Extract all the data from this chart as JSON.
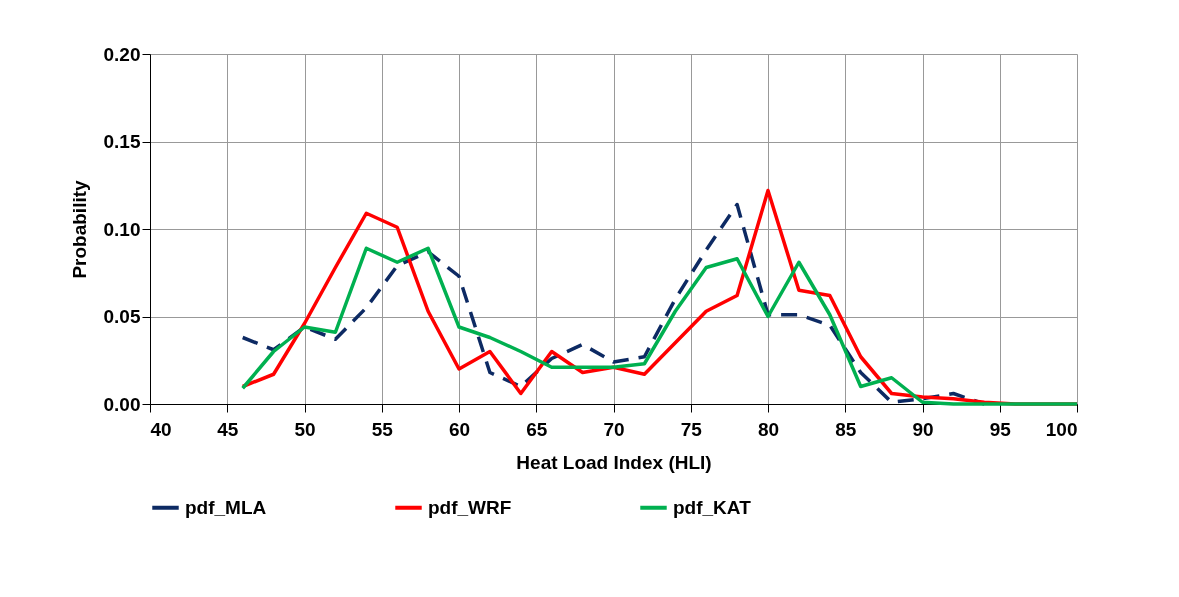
{
  "chart_data": {
    "type": "line",
    "xlabel": "Heat Load Index (HLI)",
    "ylabel": "Probability",
    "x": [
      46,
      48,
      50,
      52,
      54,
      56,
      58,
      60,
      62,
      64,
      66,
      68,
      70,
      72,
      74,
      76,
      78,
      80,
      82,
      84,
      86,
      88,
      90,
      92,
      94,
      96,
      98,
      100
    ],
    "series": [
      {
        "name": "pdf_MLA",
        "color": "#0d2a63",
        "line_style": "dashed",
        "values": [
          0.038,
          0.031,
          0.044,
          0.037,
          0.055,
          0.079,
          0.087,
          0.073,
          0.018,
          0.01,
          0.026,
          0.034,
          0.024,
          0.027,
          0.06,
          0.088,
          0.114,
          0.051,
          0.051,
          0.045,
          0.018,
          0.001,
          0.003,
          0.006,
          0,
          null,
          null,
          null
        ]
      },
      {
        "name": "pdf_WRF",
        "color": "#ff0000",
        "line_style": "solid",
        "values": [
          0.01,
          0.017,
          0.046,
          0.078,
          0.109,
          0.101,
          0.053,
          0.02,
          0.03,
          0.006,
          0.03,
          0.018,
          0.021,
          0.017,
          0.035,
          0.053,
          0.062,
          0.122,
          0.065,
          0.062,
          0.027,
          0.006,
          0.004,
          0.003,
          0.001,
          0,
          0,
          0
        ]
      },
      {
        "name": "pdf_KAT",
        "color": "#00b050",
        "line_style": "solid",
        "values": [
          0.009,
          0.03,
          0.044,
          0.041,
          0.089,
          0.081,
          0.089,
          0.044,
          0.038,
          0.03,
          0.021,
          0.021,
          0.021,
          0.023,
          0.053,
          0.078,
          0.083,
          0.05,
          0.081,
          0.051,
          0.01,
          0.015,
          0.001,
          0,
          0,
          0,
          0,
          0
        ]
      }
    ],
    "xlim": [
      40,
      100
    ],
    "xticks": [
      40,
      45,
      50,
      55,
      60,
      65,
      70,
      75,
      80,
      85,
      90,
      95,
      100
    ],
    "ylim": [
      0,
      0.2
    ],
    "yticks": [
      {
        "value": 0,
        "label": "0.00"
      },
      {
        "value": 0.05,
        "label": "0.05"
      },
      {
        "value": 0.1,
        "label": "0.10"
      },
      {
        "value": 0.15,
        "label": "0.15"
      },
      {
        "value": 0.2,
        "label": "0.20"
      }
    ],
    "grid": true,
    "legend": "bottom",
    "marker": "none"
  }
}
